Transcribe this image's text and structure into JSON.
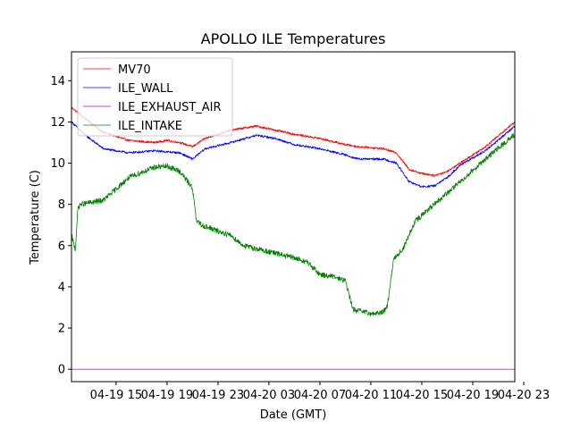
{
  "chart_data": {
    "type": "line",
    "title": "APOLLO ILE Temperatures",
    "xlabel": "Date (GMT)",
    "ylabel": "Temperature (C)",
    "xlim": [
      11.5,
      46.3
    ],
    "ylim": [
      -0.6,
      15.4
    ],
    "x_unit": "hours since 04-19 00:00 GMT",
    "x_ticks": [
      {
        "value": 15,
        "label": "04-19 15"
      },
      {
        "value": 19,
        "label": "04-19 19"
      },
      {
        "value": 23,
        "label": "04-19 23"
      },
      {
        "value": 27,
        "label": "04-20 03"
      },
      {
        "value": 31,
        "label": "04-20 07"
      },
      {
        "value": 35,
        "label": "04-20 11"
      },
      {
        "value": 39,
        "label": "04-20 15"
      },
      {
        "value": 43,
        "label": "04-20 19"
      },
      {
        "value": 47,
        "label": "04-20 23"
      }
    ],
    "y_ticks": [
      0,
      2,
      4,
      6,
      8,
      10,
      12,
      14
    ],
    "legend_position": "top-left",
    "series": [
      {
        "name": "MV70",
        "color": "#ff0000",
        "noise": 0.05,
        "x": [
          11.5,
          12.5,
          14,
          16,
          18,
          19,
          20,
          21,
          22,
          24,
          26,
          27.5,
          29,
          31,
          33,
          34,
          35,
          36,
          37,
          38,
          39,
          40,
          41,
          42,
          44,
          46.3
        ],
        "y": [
          12.7,
          12.2,
          11.5,
          11.1,
          11.0,
          11.1,
          11.0,
          10.8,
          11.2,
          11.6,
          11.8,
          11.6,
          11.4,
          11.2,
          10.9,
          10.8,
          10.75,
          10.7,
          10.5,
          9.7,
          9.5,
          9.4,
          9.6,
          10.0,
          10.8,
          12.0
        ]
      },
      {
        "name": "ILE_WALL",
        "color": "#0000ff",
        "noise": 0.05,
        "x": [
          11.5,
          12.5,
          14,
          16,
          18,
          20,
          21,
          22,
          24,
          26,
          27.5,
          29,
          31,
          33,
          34,
          35,
          36,
          37,
          38,
          39,
          40,
          41,
          42,
          44,
          46.3
        ],
        "y": [
          12.0,
          11.4,
          10.7,
          10.5,
          10.6,
          10.5,
          10.2,
          10.7,
          11.0,
          11.35,
          11.2,
          10.9,
          10.7,
          10.4,
          10.2,
          10.2,
          10.2,
          10.0,
          9.1,
          8.85,
          8.9,
          9.3,
          9.9,
          10.6,
          11.8
        ]
      },
      {
        "name": "ILE_EXHAUST_AIR",
        "color": "#bf00bf",
        "noise": 0.0,
        "x": [
          11.5,
          46.3
        ],
        "y": [
          0.0,
          0.0
        ]
      },
      {
        "name": "ILE_INTAKE",
        "color": "#008000",
        "noise": 0.13,
        "x": [
          11.5,
          11.8,
          12.0,
          12.2,
          14,
          16,
          18,
          19,
          20,
          21,
          21.3,
          21.7,
          23,
          24,
          25,
          27,
          29,
          30,
          31,
          32,
          33,
          33.3,
          33.6,
          35,
          35.5,
          36,
          36.3,
          36.8,
          37.5,
          38.5,
          40,
          42,
          44,
          46.3
        ],
        "y": [
          6.5,
          5.8,
          7.8,
          8.0,
          8.2,
          9.3,
          9.8,
          9.85,
          9.6,
          8.8,
          7.2,
          7.0,
          6.7,
          6.5,
          6.0,
          5.7,
          5.4,
          5.2,
          4.6,
          4.5,
          4.3,
          3.6,
          2.9,
          2.7,
          2.7,
          2.8,
          3.1,
          5.4,
          5.8,
          7.2,
          8.0,
          9.1,
          10.2,
          11.4
        ]
      }
    ]
  }
}
